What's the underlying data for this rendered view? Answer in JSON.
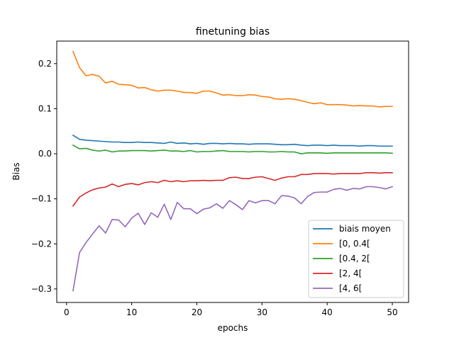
{
  "chart_data": {
    "type": "line",
    "title": "finetuning bias",
    "xlabel": "epochs",
    "ylabel": "Bias",
    "xlim": [
      -1.5,
      52.5
    ],
    "ylim": [
      -0.33,
      0.25
    ],
    "x_ticks": [
      0,
      10,
      20,
      30,
      40,
      50
    ],
    "y_ticks": [
      -0.3,
      -0.2,
      -0.1,
      0.0,
      0.1,
      0.2
    ],
    "x_tick_labels": [
      "0",
      "10",
      "20",
      "30",
      "40",
      "50"
    ],
    "y_tick_labels": [
      "−0.3",
      "−0.2",
      "−0.1",
      "0.0",
      "0.1",
      "0.2"
    ],
    "grid": false,
    "legend_position": "lower-right",
    "x": [
      1,
      2,
      3,
      4,
      5,
      6,
      7,
      8,
      9,
      10,
      11,
      12,
      13,
      14,
      15,
      16,
      17,
      18,
      19,
      20,
      21,
      22,
      23,
      24,
      25,
      26,
      27,
      28,
      29,
      30,
      31,
      32,
      33,
      34,
      35,
      36,
      37,
      38,
      39,
      40,
      41,
      42,
      43,
      44,
      45,
      46,
      47,
      48,
      49,
      50
    ],
    "series": [
      {
        "name": "biais moyen",
        "color": "#1f77b4",
        "values": [
          0.041,
          0.032,
          0.03,
          0.029,
          0.028,
          0.027,
          0.026,
          0.026,
          0.025,
          0.025,
          0.026,
          0.025,
          0.025,
          0.024,
          0.023,
          0.026,
          0.023,
          0.024,
          0.022,
          0.023,
          0.021,
          0.023,
          0.023,
          0.022,
          0.023,
          0.022,
          0.022,
          0.021,
          0.022,
          0.022,
          0.022,
          0.021,
          0.02,
          0.02,
          0.021,
          0.019,
          0.018,
          0.019,
          0.019,
          0.018,
          0.019,
          0.018,
          0.018,
          0.018,
          0.017,
          0.018,
          0.018,
          0.017,
          0.017,
          0.017
        ]
      },
      {
        "name": "[0, 0.4[",
        "color": "#ff7f0e",
        "values": [
          0.227,
          0.191,
          0.173,
          0.176,
          0.172,
          0.157,
          0.161,
          0.154,
          0.153,
          0.152,
          0.146,
          0.147,
          0.142,
          0.139,
          0.141,
          0.141,
          0.139,
          0.136,
          0.136,
          0.134,
          0.139,
          0.139,
          0.135,
          0.13,
          0.131,
          0.129,
          0.129,
          0.131,
          0.13,
          0.127,
          0.126,
          0.122,
          0.121,
          0.122,
          0.121,
          0.118,
          0.114,
          0.111,
          0.113,
          0.109,
          0.109,
          0.109,
          0.108,
          0.106,
          0.107,
          0.106,
          0.106,
          0.104,
          0.105,
          0.105
        ]
      },
      {
        "name": "[0.4, 2[",
        "color": "#2ca02c",
        "values": [
          0.019,
          0.011,
          0.012,
          0.008,
          0.006,
          0.008,
          0.004,
          0.006,
          0.006,
          0.007,
          0.007,
          0.007,
          0.006,
          0.007,
          0.008,
          0.006,
          0.006,
          0.005,
          0.007,
          0.004,
          0.005,
          0.005,
          0.006,
          0.007,
          0.005,
          0.005,
          0.005,
          0.004,
          0.005,
          0.005,
          0.004,
          0.004,
          0.005,
          0.004,
          0.004,
          0.0,
          0.002,
          0.002,
          0.002,
          0.001,
          0.002,
          0.002,
          0.002,
          0.002,
          0.002,
          0.002,
          0.002,
          0.002,
          0.002,
          0.001
        ]
      },
      {
        "name": "[2, 4[",
        "color": "#d62728",
        "values": [
          -0.116,
          -0.096,
          -0.087,
          -0.08,
          -0.076,
          -0.074,
          -0.067,
          -0.073,
          -0.068,
          -0.066,
          -0.069,
          -0.064,
          -0.062,
          -0.064,
          -0.059,
          -0.062,
          -0.06,
          -0.062,
          -0.06,
          -0.06,
          -0.059,
          -0.06,
          -0.059,
          -0.059,
          -0.053,
          -0.052,
          -0.055,
          -0.055,
          -0.052,
          -0.051,
          -0.055,
          -0.059,
          -0.054,
          -0.051,
          -0.051,
          -0.046,
          -0.046,
          -0.044,
          -0.044,
          -0.044,
          -0.045,
          -0.044,
          -0.044,
          -0.044,
          -0.044,
          -0.042,
          -0.042,
          -0.043,
          -0.042,
          -0.042
        ]
      },
      {
        "name": "[4, 6[",
        "color": "#9467bd",
        "values": [
          -0.304,
          -0.219,
          -0.197,
          -0.178,
          -0.16,
          -0.176,
          -0.146,
          -0.147,
          -0.162,
          -0.143,
          -0.132,
          -0.157,
          -0.131,
          -0.141,
          -0.112,
          -0.146,
          -0.108,
          -0.122,
          -0.122,
          -0.133,
          -0.123,
          -0.12,
          -0.111,
          -0.121,
          -0.104,
          -0.113,
          -0.124,
          -0.104,
          -0.109,
          -0.104,
          -0.104,
          -0.111,
          -0.093,
          -0.094,
          -0.098,
          -0.111,
          -0.095,
          -0.086,
          -0.085,
          -0.085,
          -0.079,
          -0.077,
          -0.081,
          -0.077,
          -0.078,
          -0.073,
          -0.073,
          -0.075,
          -0.078,
          -0.073
        ]
      }
    ]
  }
}
